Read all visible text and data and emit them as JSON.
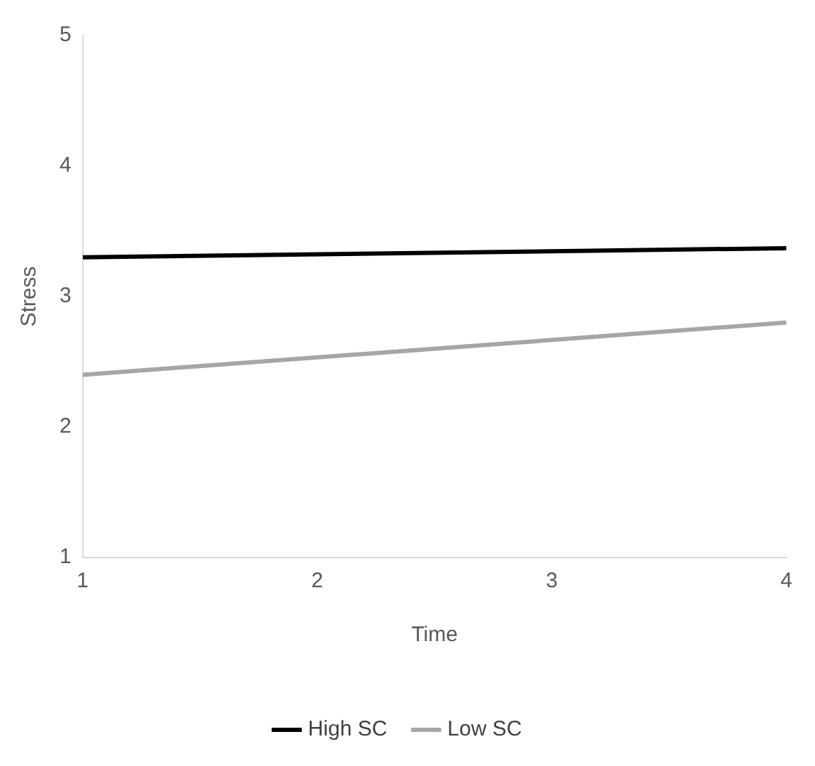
{
  "chart_data": {
    "type": "line",
    "xlabel": "Time",
    "ylabel": "Stress",
    "x": [
      1,
      4
    ],
    "series": [
      {
        "name": "High SC",
        "color": "#000000",
        "values": [
          3.3,
          3.37
        ]
      },
      {
        "name": "Low SC",
        "color": "#a6a6a6",
        "values": [
          2.4,
          2.8
        ]
      }
    ],
    "xlim": [
      1,
      4
    ],
    "xticks": [
      1,
      2,
      3,
      4
    ],
    "ylim": [
      1,
      5
    ],
    "yticks": [
      1,
      2,
      3,
      4,
      5
    ],
    "grid": false,
    "legend": "bottom",
    "marker": "none",
    "line_style": "solid"
  }
}
